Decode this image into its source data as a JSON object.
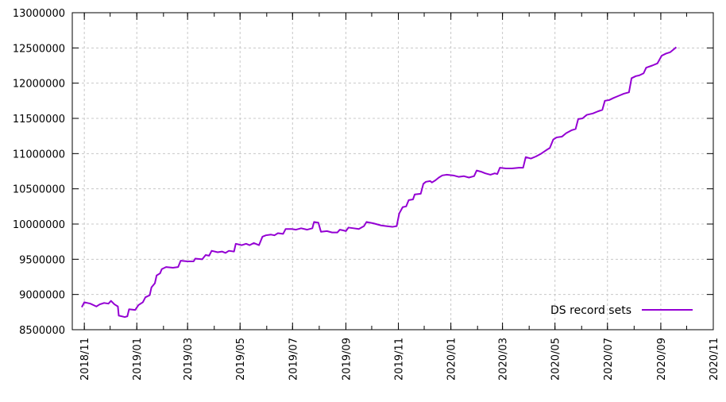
{
  "chart_data": {
    "type": "line",
    "title": "",
    "xlabel": "",
    "ylabel": "",
    "ylim": [
      8500000,
      13000000
    ],
    "xlim": [
      "2018-10-18",
      "2020-11-01"
    ],
    "grid": true,
    "legend_position": "bottom-right",
    "y_ticks": [
      "8500000",
      "9000000",
      "9500000",
      "10000000",
      "10500000",
      "11000000",
      "11500000",
      "12000000",
      "12500000",
      "13000000"
    ],
    "x_ticks": [
      "2018/11",
      "2019/01",
      "2019/03",
      "2019/05",
      "2019/07",
      "2019/09",
      "2019/11",
      "2020/01",
      "2020/03",
      "2020/05",
      "2020/07",
      "2020/09",
      "2020/11"
    ],
    "series": [
      {
        "name": "DS record sets",
        "color": "#9400d3",
        "points": [
          [
            "2018-10-29",
            8820000
          ],
          [
            "2018-11-01",
            8890000
          ],
          [
            "2018-11-08",
            8870000
          ],
          [
            "2018-11-15",
            8830000
          ],
          [
            "2018-11-19",
            8860000
          ],
          [
            "2018-11-24",
            8880000
          ],
          [
            "2018-11-29",
            8870000
          ],
          [
            "2018-12-02",
            8910000
          ],
          [
            "2018-12-06",
            8860000
          ],
          [
            "2018-12-10",
            8830000
          ],
          [
            "2018-12-11",
            8700000
          ],
          [
            "2018-12-18",
            8680000
          ],
          [
            "2018-12-21",
            8690000
          ],
          [
            "2018-12-23",
            8790000
          ],
          [
            "2018-12-30",
            8780000
          ],
          [
            "2019-01-03",
            8850000
          ],
          [
            "2019-01-08",
            8890000
          ],
          [
            "2019-01-11",
            8960000
          ],
          [
            "2019-01-16",
            8990000
          ],
          [
            "2019-01-18",
            9100000
          ],
          [
            "2019-01-22",
            9160000
          ],
          [
            "2019-01-24",
            9270000
          ],
          [
            "2019-01-28",
            9300000
          ],
          [
            "2019-01-30",
            9360000
          ],
          [
            "2019-02-04",
            9390000
          ],
          [
            "2019-02-12",
            9380000
          ],
          [
            "2019-02-18",
            9390000
          ],
          [
            "2019-02-21",
            9480000
          ],
          [
            "2019-03-01",
            9470000
          ],
          [
            "2019-03-08",
            9470000
          ],
          [
            "2019-03-10",
            9510000
          ],
          [
            "2019-03-18",
            9500000
          ],
          [
            "2019-03-22",
            9560000
          ],
          [
            "2019-03-26",
            9550000
          ],
          [
            "2019-03-29",
            9620000
          ],
          [
            "2019-04-05",
            9600000
          ],
          [
            "2019-04-10",
            9610000
          ],
          [
            "2019-04-14",
            9590000
          ],
          [
            "2019-04-18",
            9620000
          ],
          [
            "2019-04-24",
            9610000
          ],
          [
            "2019-04-26",
            9720000
          ],
          [
            "2019-05-03",
            9700000
          ],
          [
            "2019-05-08",
            9720000
          ],
          [
            "2019-05-12",
            9700000
          ],
          [
            "2019-05-17",
            9730000
          ],
          [
            "2019-05-23",
            9700000
          ],
          [
            "2019-05-27",
            9820000
          ],
          [
            "2019-05-31",
            9840000
          ],
          [
            "2019-06-06",
            9850000
          ],
          [
            "2019-06-10",
            9840000
          ],
          [
            "2019-06-14",
            9870000
          ],
          [
            "2019-06-20",
            9860000
          ],
          [
            "2019-06-23",
            9930000
          ],
          [
            "2019-06-30",
            9930000
          ],
          [
            "2019-07-05",
            9920000
          ],
          [
            "2019-07-11",
            9940000
          ],
          [
            "2019-07-18",
            9920000
          ],
          [
            "2019-07-24",
            9940000
          ],
          [
            "2019-07-26",
            10030000
          ],
          [
            "2019-07-31",
            10020000
          ],
          [
            "2019-08-03",
            9890000
          ],
          [
            "2019-08-10",
            9900000
          ],
          [
            "2019-08-16",
            9880000
          ],
          [
            "2019-08-22",
            9880000
          ],
          [
            "2019-08-25",
            9920000
          ],
          [
            "2019-08-29",
            9910000
          ],
          [
            "2019-09-01",
            9900000
          ],
          [
            "2019-09-04",
            9950000
          ],
          [
            "2019-09-10",
            9940000
          ],
          [
            "2019-09-16",
            9930000
          ],
          [
            "2019-09-22",
            9970000
          ],
          [
            "2019-09-25",
            10030000
          ],
          [
            "2019-10-03",
            10010000
          ],
          [
            "2019-10-12",
            9980000
          ],
          [
            "2019-10-18",
            9970000
          ],
          [
            "2019-10-25",
            9960000
          ],
          [
            "2019-10-30",
            9970000
          ],
          [
            "2019-11-02",
            10150000
          ],
          [
            "2019-11-06",
            10240000
          ],
          [
            "2019-11-10",
            10250000
          ],
          [
            "2019-11-13",
            10340000
          ],
          [
            "2019-11-18",
            10350000
          ],
          [
            "2019-11-20",
            10420000
          ],
          [
            "2019-11-27",
            10430000
          ],
          [
            "2019-11-30",
            10570000
          ],
          [
            "2019-12-03",
            10600000
          ],
          [
            "2019-12-08",
            10610000
          ],
          [
            "2019-12-10",
            10590000
          ],
          [
            "2019-12-14",
            10620000
          ],
          [
            "2019-12-18",
            10660000
          ],
          [
            "2019-12-22",
            10690000
          ],
          [
            "2019-12-27",
            10700000
          ],
          [
            "2020-01-04",
            10690000
          ],
          [
            "2020-01-10",
            10670000
          ],
          [
            "2020-01-16",
            10680000
          ],
          [
            "2020-01-22",
            10660000
          ],
          [
            "2020-01-28",
            10680000
          ],
          [
            "2020-01-31",
            10760000
          ],
          [
            "2020-02-06",
            10740000
          ],
          [
            "2020-02-10",
            10720000
          ],
          [
            "2020-02-16",
            10700000
          ],
          [
            "2020-02-21",
            10720000
          ],
          [
            "2020-02-24",
            10710000
          ],
          [
            "2020-02-27",
            10800000
          ],
          [
            "2020-03-05",
            10790000
          ],
          [
            "2020-03-12",
            10790000
          ],
          [
            "2020-03-20",
            10800000
          ],
          [
            "2020-03-25",
            10800000
          ],
          [
            "2020-03-28",
            10950000
          ],
          [
            "2020-04-03",
            10930000
          ],
          [
            "2020-04-09",
            10960000
          ],
          [
            "2020-04-15",
            11000000
          ],
          [
            "2020-04-21",
            11050000
          ],
          [
            "2020-04-25",
            11080000
          ],
          [
            "2020-04-29",
            11200000
          ],
          [
            "2020-05-03",
            11230000
          ],
          [
            "2020-05-09",
            11240000
          ],
          [
            "2020-05-14",
            11290000
          ],
          [
            "2020-05-20",
            11330000
          ],
          [
            "2020-05-25",
            11350000
          ],
          [
            "2020-05-28",
            11490000
          ],
          [
            "2020-06-02",
            11500000
          ],
          [
            "2020-06-07",
            11550000
          ],
          [
            "2020-06-14",
            11570000
          ],
          [
            "2020-06-20",
            11600000
          ],
          [
            "2020-06-25",
            11620000
          ],
          [
            "2020-06-28",
            11750000
          ],
          [
            "2020-07-03",
            11760000
          ],
          [
            "2020-07-08",
            11790000
          ],
          [
            "2020-07-14",
            11820000
          ],
          [
            "2020-07-20",
            11850000
          ],
          [
            "2020-07-26",
            11870000
          ],
          [
            "2020-07-29",
            12070000
          ],
          [
            "2020-08-03",
            12100000
          ],
          [
            "2020-08-07",
            12110000
          ],
          [
            "2020-08-12",
            12140000
          ],
          [
            "2020-08-15",
            12220000
          ],
          [
            "2020-08-22",
            12250000
          ],
          [
            "2020-08-28",
            12280000
          ],
          [
            "2020-09-02",
            12390000
          ],
          [
            "2020-09-07",
            12420000
          ],
          [
            "2020-09-12",
            12440000
          ],
          [
            "2020-09-15",
            12470000
          ],
          [
            "2020-09-19",
            12510000
          ]
        ]
      }
    ]
  }
}
